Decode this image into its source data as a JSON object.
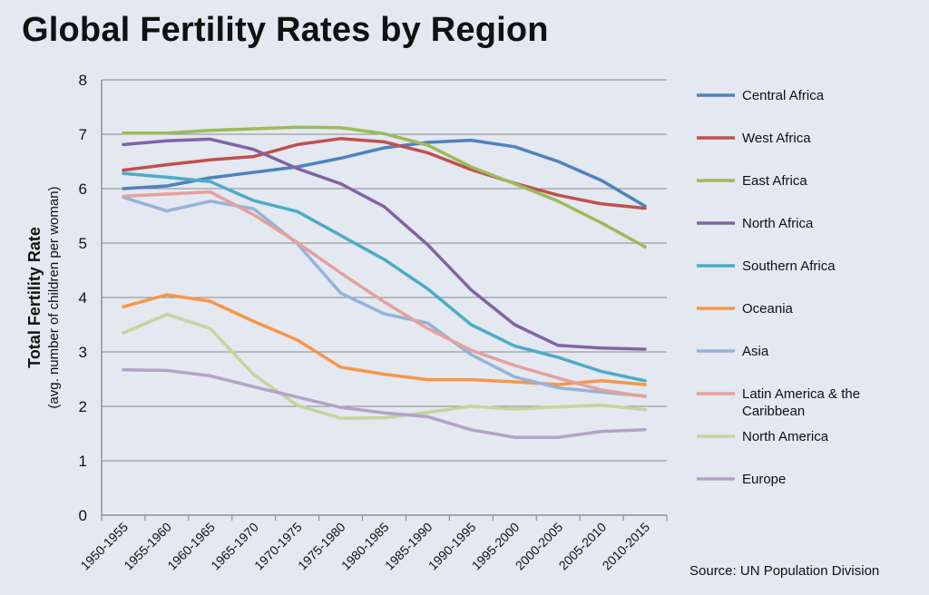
{
  "chart_data": {
    "type": "line",
    "title": "Global Fertility Rates by Region",
    "ylabel": "Total Fertility Rate",
    "ylabel_sub": "(avg. number of children per woman)",
    "xlabel": "",
    "source": "Source:  UN Population Division",
    "ylim": [
      0,
      8
    ],
    "yticks": [
      0,
      1,
      2,
      3,
      4,
      5,
      6,
      7,
      8
    ],
    "grid": true,
    "legend_position": "right",
    "categories": [
      "1950-1955",
      "1955-1960",
      "1960-1965",
      "1965-1970",
      "1970-1975",
      "1975-1980",
      "1980-1985",
      "1985-1990",
      "1990-1995",
      "1995-2000",
      "2000-2005",
      "2005-2010",
      "2010-2015"
    ],
    "series": [
      {
        "name": "Central Africa",
        "color": "#4f81bd",
        "values": [
          6.0,
          6.05,
          6.2,
          6.3,
          6.4,
          6.56,
          6.75,
          6.85,
          6.89,
          6.77,
          6.5,
          6.15,
          5.68
        ]
      },
      {
        "name": "West Africa",
        "color": "#c0504d",
        "values": [
          6.34,
          6.44,
          6.53,
          6.59,
          6.81,
          6.92,
          6.86,
          6.66,
          6.35,
          6.1,
          5.88,
          5.72,
          5.64
        ]
      },
      {
        "name": "East Africa",
        "color": "#9bbb59",
        "values": [
          7.02,
          7.02,
          7.07,
          7.1,
          7.13,
          7.12,
          7.01,
          6.8,
          6.4,
          6.09,
          5.77,
          5.37,
          4.93
        ]
      },
      {
        "name": "North Africa",
        "color": "#8064a2",
        "values": [
          6.81,
          6.88,
          6.91,
          6.72,
          6.37,
          6.09,
          5.67,
          4.97,
          4.14,
          3.5,
          3.12,
          3.07,
          3.05
        ]
      },
      {
        "name": "Southern Africa",
        "color": "#4bacc6",
        "values": [
          6.28,
          6.21,
          6.13,
          5.78,
          5.58,
          5.14,
          4.7,
          4.16,
          3.5,
          3.11,
          2.9,
          2.64,
          2.47
        ]
      },
      {
        "name": "Oceania",
        "color": "#f79646",
        "values": [
          3.83,
          4.05,
          3.93,
          3.56,
          3.22,
          2.72,
          2.59,
          2.49,
          2.49,
          2.45,
          2.4,
          2.47,
          2.4
        ]
      },
      {
        "name": "Asia",
        "color": "#95b3d7",
        "values": [
          5.84,
          5.59,
          5.77,
          5.63,
          4.99,
          4.08,
          3.7,
          3.53,
          2.95,
          2.54,
          2.34,
          2.26,
          2.19
        ]
      },
      {
        "name": "Latin America & the Caribbean",
        "color": "#e6a09c",
        "values": [
          5.86,
          5.9,
          5.94,
          5.52,
          5.01,
          4.45,
          3.92,
          3.43,
          3.03,
          2.75,
          2.52,
          2.3,
          2.18
        ]
      },
      {
        "name": "North America",
        "color": "#c3d69b",
        "values": [
          3.35,
          3.69,
          3.43,
          2.58,
          2.02,
          1.78,
          1.79,
          1.89,
          2.0,
          1.95,
          1.99,
          2.02,
          1.94
        ]
      },
      {
        "name": "Europe",
        "color": "#b3a2c7",
        "values": [
          2.67,
          2.66,
          2.56,
          2.36,
          2.17,
          1.98,
          1.88,
          1.81,
          1.57,
          1.43,
          1.43,
          1.54,
          1.57
        ]
      }
    ]
  }
}
